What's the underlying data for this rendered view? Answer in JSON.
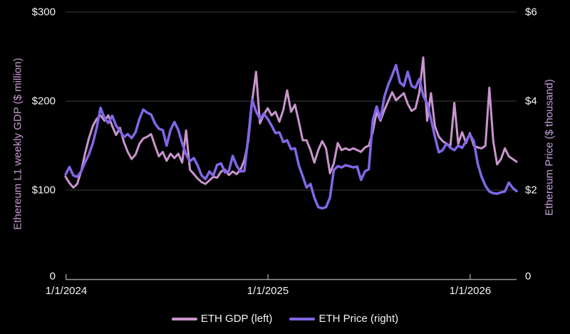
{
  "chart_data": {
    "type": "line",
    "title": "",
    "grid": true,
    "legend_position": "bottom",
    "x_axis": {
      "tick_labels": [
        "1/1/2024",
        "1/1/2025",
        "1/1/2026"
      ],
      "points_per_series": 117,
      "interval": "weekly"
    },
    "left_axis": {
      "label": "Ethereum L1 weekly GDP ($ million)",
      "color": "#c999d2",
      "ticks": [
        "$300",
        "$200",
        "$100",
        "0"
      ],
      "range": [
        0,
        300
      ]
    },
    "right_axis": {
      "label": "Ethereum Price ($ thousand)",
      "color": "#c7a0dc",
      "ticks": [
        "$6",
        "$4",
        "$2",
        "0"
      ],
      "range": [
        0,
        6
      ]
    },
    "series": [
      {
        "name": "ETH GDP (left)",
        "axis": "left",
        "color": "#c995cd",
        "values": [
          115,
          108,
          103,
          107,
          121,
          141,
          158,
          172,
          180,
          184,
          178,
          184,
          172,
          162,
          170,
          154,
          143,
          135,
          140,
          152,
          158,
          160,
          163,
          150,
          138,
          143,
          133,
          141,
          136,
          141,
          131,
          167,
          123,
          118,
          113,
          109,
          107,
          111,
          115,
          114,
          121,
          123,
          117,
          121,
          118,
          123,
          134,
          155,
          200,
          233,
          175,
          185,
          192,
          184,
          188,
          177,
          190,
          212,
          188,
          196,
          177,
          156,
          156,
          145,
          131,
          145,
          155,
          147,
          119,
          130,
          153,
          145,
          147,
          145,
          147,
          145,
          143,
          148,
          150,
          165,
          188,
          178,
          190,
          200,
          210,
          201,
          205,
          209,
          197,
          189,
          192,
          210,
          249,
          178,
          209,
          172,
          160,
          155,
          152,
          150,
          198,
          152,
          165,
          153,
          164,
          150,
          148,
          147,
          150,
          215,
          155,
          129,
          135,
          147,
          138,
          135,
          132
        ]
      },
      {
        "name": "ETH Price (right)",
        "axis": "right",
        "color": "#8266e6",
        "values": [
          2.35,
          2.52,
          2.33,
          2.3,
          2.42,
          2.62,
          2.8,
          3.05,
          3.4,
          3.85,
          3.62,
          3.51,
          3.67,
          3.45,
          3.33,
          3.19,
          3.26,
          3.17,
          3.3,
          3.6,
          3.81,
          3.74,
          3.7,
          3.5,
          3.38,
          3.35,
          3.0,
          3.35,
          3.53,
          3.35,
          3.05,
          2.8,
          2.65,
          2.72,
          2.55,
          2.33,
          2.25,
          2.42,
          2.33,
          2.57,
          2.6,
          2.4,
          2.43,
          2.77,
          2.55,
          2.42,
          2.43,
          3.2,
          4.03,
          3.77,
          3.6,
          3.72,
          3.6,
          3.45,
          3.28,
          3.3,
          3.08,
          3.12,
          2.92,
          2.94,
          2.56,
          2.31,
          2.06,
          2.14,
          1.83,
          1.62,
          1.59,
          1.62,
          1.83,
          2.45,
          2.54,
          2.51,
          2.56,
          2.54,
          2.51,
          2.53,
          2.23,
          2.42,
          2.47,
          3.56,
          3.88,
          3.6,
          4.1,
          4.37,
          4.58,
          4.81,
          4.42,
          4.34,
          4.66,
          4.34,
          4.3,
          4.5,
          4.12,
          3.95,
          3.6,
          3.2,
          2.85,
          2.9,
          3.05,
          2.95,
          2.9,
          3.0,
          2.95,
          3.1,
          3.25,
          3.1,
          2.6,
          2.3,
          2.1,
          1.97,
          1.93,
          1.92,
          1.95,
          1.97,
          2.17,
          2.05,
          1.98
        ]
      }
    ]
  },
  "layout_colors": {
    "background": "#000000",
    "gridline": "#3d3d3d",
    "axis_line": "#989898",
    "tick_text": "#f4f4f4"
  }
}
